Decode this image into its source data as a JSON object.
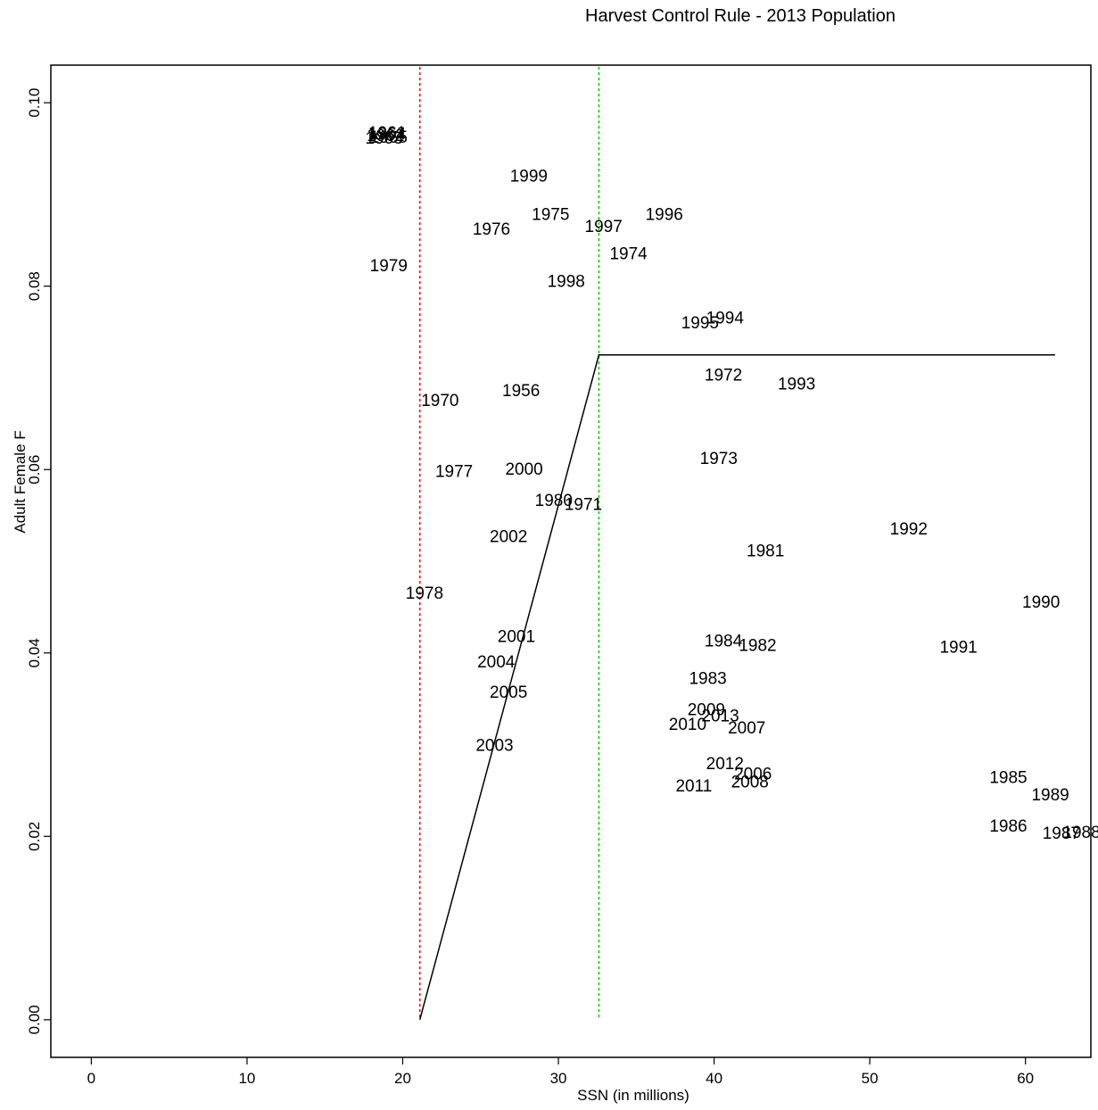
{
  "chart_data": {
    "type": "scatter",
    "title": "Harvest Control Rule - 2013 Population",
    "xlabel": "SSN (in millions)",
    "ylabel": "Adult Female F",
    "xlim": [
      -2.6,
      64.2
    ],
    "ylim": [
      -0.0041,
      0.1041
    ],
    "xticks": [
      0,
      10,
      20,
      30,
      40,
      50,
      60
    ],
    "yticks": [
      0.0,
      0.02,
      0.04,
      0.06,
      0.08,
      0.1
    ],
    "ytick_labels": [
      "0.00",
      "0.02",
      "0.04",
      "0.06",
      "0.08",
      "0.10"
    ],
    "grid": false,
    "legend": "none",
    "points": [
      {
        "label": "1956",
        "x": 27.6,
        "y": 0.0686
      },
      {
        "label": "1961",
        "x": 19.0,
        "y": 0.0967
      },
      {
        "label": "1962",
        "x": 18.9,
        "y": 0.0964
      },
      {
        "label": "1963",
        "x": 18.8,
        "y": 0.0961
      },
      {
        "label": "1964",
        "x": 19.0,
        "y": 0.0966
      },
      {
        "label": "1965",
        "x": 19.1,
        "y": 0.0962
      },
      {
        "label": "1970",
        "x": 22.4,
        "y": 0.0675
      },
      {
        "label": "1971",
        "x": 31.6,
        "y": 0.0562
      },
      {
        "label": "1972",
        "x": 40.6,
        "y": 0.0703
      },
      {
        "label": "1973",
        "x": 40.3,
        "y": 0.0612
      },
      {
        "label": "1974",
        "x": 34.5,
        "y": 0.0835
      },
      {
        "label": "1975",
        "x": 29.5,
        "y": 0.0878
      },
      {
        "label": "1976",
        "x": 25.7,
        "y": 0.0862
      },
      {
        "label": "1977",
        "x": 23.3,
        "y": 0.0598
      },
      {
        "label": "1978",
        "x": 21.4,
        "y": 0.0465
      },
      {
        "label": "1979",
        "x": 19.1,
        "y": 0.0822
      },
      {
        "label": "1980",
        "x": 29.7,
        "y": 0.0566
      },
      {
        "label": "1981",
        "x": 43.3,
        "y": 0.0511
      },
      {
        "label": "1982",
        "x": 42.8,
        "y": 0.0408
      },
      {
        "label": "1983",
        "x": 39.6,
        "y": 0.0372
      },
      {
        "label": "1984",
        "x": 40.6,
        "y": 0.0413
      },
      {
        "label": "1985",
        "x": 58.9,
        "y": 0.0264
      },
      {
        "label": "1986",
        "x": 58.9,
        "y": 0.0211
      },
      {
        "label": "1987",
        "x": 62.3,
        "y": 0.0203
      },
      {
        "label": "1988",
        "x": 63.6,
        "y": 0.0204
      },
      {
        "label": "1989",
        "x": 61.6,
        "y": 0.0245
      },
      {
        "label": "1990",
        "x": 61.0,
        "y": 0.0455
      },
      {
        "label": "1991",
        "x": 55.7,
        "y": 0.0406
      },
      {
        "label": "1992",
        "x": 52.5,
        "y": 0.0535
      },
      {
        "label": "1993",
        "x": 45.3,
        "y": 0.0693
      },
      {
        "label": "1994",
        "x": 40.7,
        "y": 0.0765
      },
      {
        "label": "1995",
        "x": 39.1,
        "y": 0.076
      },
      {
        "label": "1996",
        "x": 36.8,
        "y": 0.0878
      },
      {
        "label": "1997",
        "x": 32.9,
        "y": 0.0865
      },
      {
        "label": "1998",
        "x": 30.5,
        "y": 0.0805
      },
      {
        "label": "1999",
        "x": 28.1,
        "y": 0.092
      },
      {
        "label": "2000",
        "x": 27.8,
        "y": 0.06
      },
      {
        "label": "2001",
        "x": 27.3,
        "y": 0.0418
      },
      {
        "label": "2002",
        "x": 26.8,
        "y": 0.0527
      },
      {
        "label": "2003",
        "x": 25.9,
        "y": 0.0299
      },
      {
        "label": "2004",
        "x": 26.0,
        "y": 0.039
      },
      {
        "label": "2005",
        "x": 26.8,
        "y": 0.0357
      },
      {
        "label": "2006",
        "x": 42.5,
        "y": 0.0268
      },
      {
        "label": "2007",
        "x": 42.1,
        "y": 0.0318
      },
      {
        "label": "2008",
        "x": 42.3,
        "y": 0.0259
      },
      {
        "label": "2009",
        "x": 39.5,
        "y": 0.0338
      },
      {
        "label": "2010",
        "x": 38.3,
        "y": 0.0322
      },
      {
        "label": "2011",
        "x": 38.7,
        "y": 0.0255
      },
      {
        "label": "2012",
        "x": 40.7,
        "y": 0.0279
      },
      {
        "label": "2013",
        "x": 40.4,
        "y": 0.0331
      }
    ],
    "control_rule": [
      {
        "x": 21.1,
        "y": 0.0
      },
      {
        "x": 32.6,
        "y": 0.0725
      },
      {
        "x": 61.9,
        "y": 0.0725
      }
    ],
    "reference_lines": [
      {
        "x": 21.1,
        "color": "#ff0000",
        "style": "dotted"
      },
      {
        "x": 32.6,
        "color": "#00cc00",
        "style": "dotted"
      }
    ]
  }
}
